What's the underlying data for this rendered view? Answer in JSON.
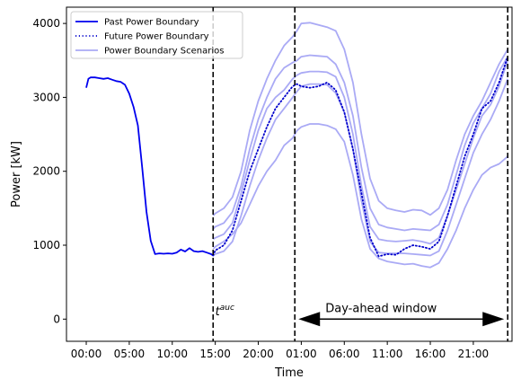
{
  "chart_data": {
    "type": "line",
    "xlabel": "Time",
    "ylabel": "Power [kW]",
    "x_unit": "hours",
    "xlim": [
      -2.3,
      49.5
    ],
    "ylim": [
      -300,
      4220
    ],
    "x_tick_labels": [
      {
        "x": 0,
        "label": "00:00"
      },
      {
        "x": 5,
        "label": "05:00"
      },
      {
        "x": 10,
        "label": "10:00"
      },
      {
        "x": 15,
        "label": "15:00"
      },
      {
        "x": 20,
        "label": "20:00"
      },
      {
        "x": 25,
        "label": "01:00"
      },
      {
        "x": 30,
        "label": "06:00"
      },
      {
        "x": 35,
        "label": "11:00"
      },
      {
        "x": 40,
        "label": "16:00"
      },
      {
        "x": 45,
        "label": "21:00"
      }
    ],
    "y_ticks": [
      0,
      1000,
      2000,
      3000,
      4000
    ],
    "legend": {
      "placement": "top-left",
      "entries": [
        "Past Power Boundary",
        "Future Power Boundary",
        "Power Boundary Scenarios"
      ]
    },
    "colors": {
      "past": "#0000ee",
      "future": "#0000cc",
      "scenario": "#aaaaf5"
    },
    "vlines": [
      14.75,
      24.25,
      49.0
    ],
    "annotations": {
      "tauc": {
        "base": "t",
        "sup": "auc",
        "x": 15.0,
        "y": 50
      },
      "window": {
        "text": "Day-ahead window",
        "x_start": 24.25,
        "x_end": 49.0,
        "y": 0
      }
    },
    "series": [
      {
        "name": "Past Power Boundary",
        "style": "solid",
        "x": [
          0,
          0.25,
          0.5,
          1,
          1.5,
          2,
          2.5,
          3,
          3.5,
          4,
          4.5,
          5,
          5.5,
          6,
          6.5,
          7,
          7.5,
          8,
          8.5,
          9,
          9.5,
          10,
          10.5,
          11,
          11.5,
          12,
          12.5,
          13,
          13.5,
          14,
          14.5,
          14.75
        ],
        "y": [
          3130,
          3250,
          3270,
          3270,
          3260,
          3250,
          3260,
          3240,
          3220,
          3210,
          3170,
          3050,
          2870,
          2620,
          2050,
          1450,
          1060,
          880,
          890,
          885,
          890,
          885,
          900,
          940,
          915,
          960,
          920,
          910,
          920,
          900,
          880,
          860
        ]
      },
      {
        "name": "Future Power Boundary",
        "style": "dotted",
        "x": [
          14.75,
          15,
          16,
          17,
          18,
          19,
          20,
          21,
          22,
          23,
          24,
          24.5,
          25,
          26,
          27,
          28,
          29,
          30,
          31,
          32,
          33,
          34,
          35,
          36,
          37,
          38,
          39,
          40,
          41,
          42,
          43,
          44,
          45,
          46,
          47,
          48,
          49
        ],
        "y": [
          860,
          930,
          1000,
          1200,
          1600,
          2000,
          2300,
          2600,
          2850,
          3000,
          3150,
          3180,
          3150,
          3130,
          3150,
          3200,
          3100,
          2800,
          2300,
          1700,
          1100,
          850,
          880,
          870,
          950,
          1000,
          980,
          950,
          1050,
          1400,
          1800,
          2200,
          2500,
          2850,
          2950,
          3200,
          3550
        ]
      }
    ],
    "scenarios": {
      "name": "Power Boundary Scenarios",
      "x": [
        14.75,
        15,
        16,
        17,
        18,
        19,
        20,
        21,
        22,
        23,
        24,
        24.5,
        25,
        26,
        27,
        28,
        29,
        30,
        31,
        32,
        33,
        34,
        35,
        36,
        37,
        38,
        39,
        40,
        41,
        42,
        43,
        44,
        45,
        46,
        47,
        48,
        49
      ],
      "lines": [
        [
          1400,
          1430,
          1500,
          1650,
          2000,
          2550,
          2950,
          3250,
          3500,
          3700,
          3820,
          3900,
          4000,
          4010,
          3980,
          3950,
          3900,
          3650,
          3200,
          2500,
          1900,
          1600,
          1500,
          1470,
          1450,
          1480,
          1470,
          1410,
          1500,
          1750,
          2150,
          2500,
          2750,
          2950,
          3200,
          3450,
          3650
        ],
        [
          1220,
          1250,
          1300,
          1450,
          1800,
          2300,
          2700,
          3000,
          3250,
          3400,
          3470,
          3500,
          3550,
          3570,
          3560,
          3550,
          3450,
          3200,
          2750,
          2050,
          1500,
          1280,
          1240,
          1220,
          1200,
          1220,
          1210,
          1200,
          1280,
          1550,
          1950,
          2350,
          2650,
          2850,
          3050,
          3350,
          3550
        ],
        [
          1080,
          1100,
          1150,
          1300,
          1700,
          2150,
          2550,
          2850,
          3000,
          3100,
          3250,
          3300,
          3330,
          3350,
          3350,
          3340,
          3280,
          3000,
          2500,
          1800,
          1250,
          1080,
          1060,
          1050,
          1060,
          1070,
          1050,
          1020,
          1100,
          1400,
          1750,
          2100,
          2450,
          2750,
          2900,
          3150,
          3500
        ],
        [
          860,
          880,
          920,
          1050,
          1400,
          1800,
          2150,
          2450,
          2700,
          2850,
          3000,
          3080,
          3150,
          3180,
          3180,
          3170,
          3060,
          2800,
          2300,
          1600,
          1050,
          900,
          890,
          890,
          890,
          880,
          870,
          860,
          920,
          1200,
          1550,
          1900,
          2250,
          2500,
          2700,
          2950,
          3250
        ],
        [
          950,
          980,
          1050,
          1150,
          1300,
          1550,
          1800,
          2000,
          2150,
          2350,
          2450,
          2550,
          2600,
          2640,
          2640,
          2620,
          2570,
          2400,
          1950,
          1350,
          950,
          820,
          780,
          760,
          740,
          750,
          720,
          700,
          760,
          950,
          1200,
          1500,
          1750,
          1950,
          2050,
          2100,
          2200
        ]
      ]
    }
  }
}
